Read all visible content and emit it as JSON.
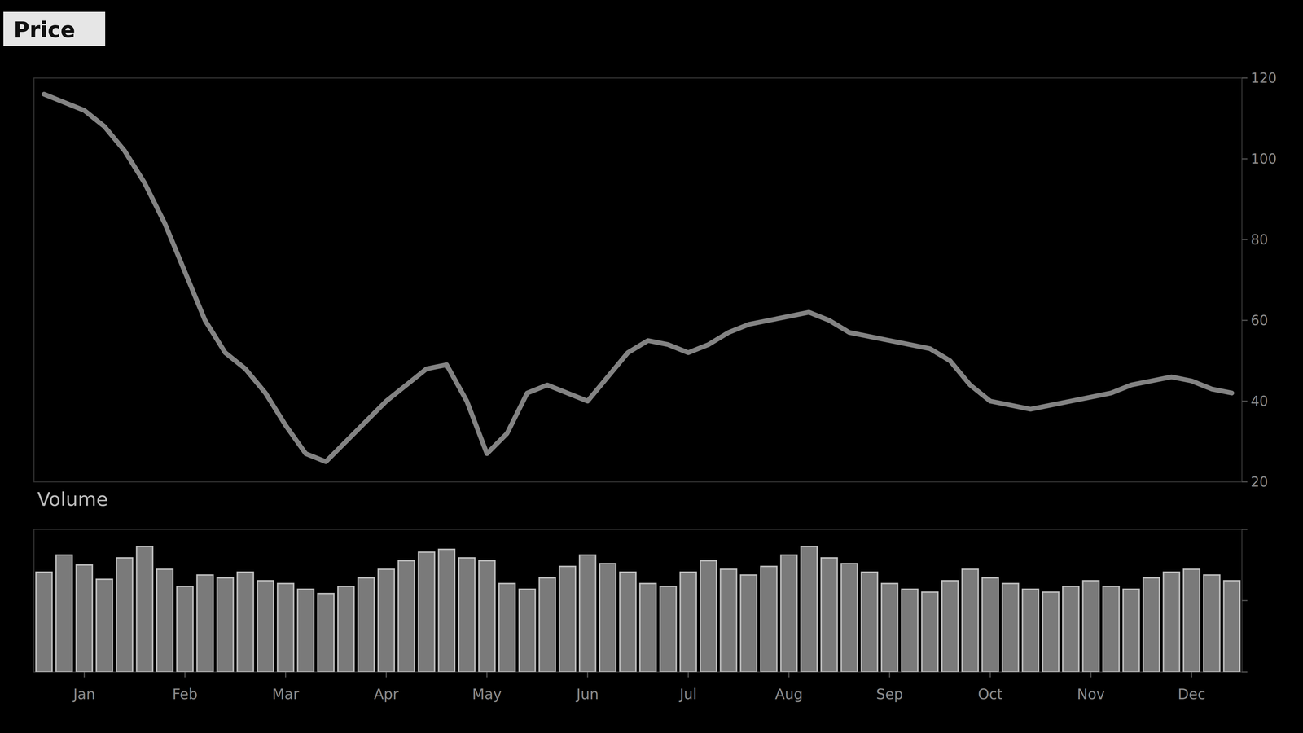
{
  "chart_data": [
    {
      "type": "line",
      "title": "Price",
      "categories": [
        null,
        null,
        "Jan",
        null,
        null,
        null,
        null,
        "Feb",
        null,
        null,
        null,
        null,
        "Mar",
        null,
        null,
        null,
        null,
        "Apr",
        null,
        null,
        null,
        null,
        "May",
        null,
        null,
        null,
        null,
        "Jun",
        null,
        null,
        null,
        null,
        "Jul",
        null,
        null,
        null,
        null,
        "Aug",
        null,
        null,
        null,
        null,
        "Sep",
        null,
        null,
        null,
        null,
        "Oct",
        null,
        null,
        null,
        null,
        "Nov",
        null,
        null,
        null,
        null,
        "Dec",
        null,
        null
      ],
      "values": [
        116,
        114,
        112,
        108,
        102,
        94,
        84,
        72,
        60,
        52,
        48,
        42,
        34,
        27,
        25,
        30,
        35,
        40,
        44,
        48,
        49,
        40,
        27,
        32,
        42,
        44,
        42,
        40,
        46,
        52,
        55,
        54,
        52,
        54,
        57,
        59,
        60,
        61,
        62,
        60,
        57,
        56,
        55,
        54,
        53,
        50,
        44,
        40,
        39,
        38,
        39,
        40,
        41,
        42,
        44,
        45,
        46,
        45,
        43,
        42
      ],
      "color": "#9a9a9a",
      "ylim": [
        20,
        120
      ],
      "yticks": [
        20,
        40,
        60,
        80,
        100,
        120
      ],
      "grid": false,
      "tick_labels": "y"
    },
    {
      "type": "bar",
      "title": "Volume",
      "categories": [
        null,
        null,
        "Jan",
        null,
        null,
        null,
        null,
        "Feb",
        null,
        null,
        null,
        null,
        "Mar",
        null,
        null,
        null,
        null,
        "Apr",
        null,
        null,
        null,
        null,
        "May",
        null,
        null,
        null,
        null,
        "Jun",
        null,
        null,
        null,
        null,
        "Jul",
        null,
        null,
        null,
        null,
        "Aug",
        null,
        null,
        null,
        null,
        "Sep",
        null,
        null,
        null,
        null,
        "Oct",
        null,
        null,
        null,
        null,
        "Nov",
        null,
        null,
        null,
        null,
        "Dec",
        null,
        null
      ],
      "values": [
        70,
        82,
        75,
        65,
        80,
        88,
        72,
        60,
        68,
        66,
        70,
        64,
        62,
        58,
        55,
        60,
        66,
        72,
        78,
        84,
        86,
        80,
        78,
        62,
        58,
        66,
        74,
        82,
        76,
        70,
        62,
        60,
        70,
        78,
        72,
        68,
        74,
        82,
        88,
        80,
        76,
        70,
        62,
        58,
        56,
        64,
        72,
        66,
        62,
        58,
        56,
        60,
        64,
        60,
        58,
        66,
        70,
        72,
        68,
        64
      ],
      "color": "#7a7a7a",
      "ylim": [
        0,
        100
      ],
      "yticks": [
        0,
        50,
        100
      ],
      "grid": false,
      "tick_labels": "x"
    }
  ]
}
